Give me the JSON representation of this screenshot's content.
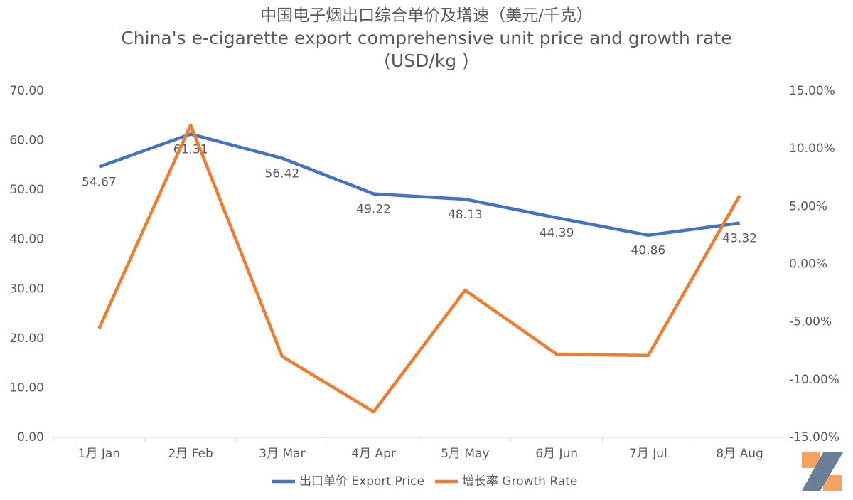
{
  "chart_data": {
    "type": "line",
    "title": "中国电子烟出口综合单价及增速（美元/千克）",
    "subtitle": "China's e-cigarette export comprehensive unit price and growth rate (USD/kg )",
    "categories": [
      "1月 Jan",
      "2月 Feb",
      "3月 Mar",
      "4月 Apr",
      "5月 May",
      "6月 Jun",
      "7月 Jul",
      "8月 Aug"
    ],
    "series": [
      {
        "name": "出口单价 Export Price",
        "color": "#4472c4",
        "values": [
          54.67,
          61.31,
          56.42,
          49.22,
          48.13,
          44.39,
          40.86,
          43.32
        ],
        "data_labels": true
      },
      {
        "name": "增长率 Growth Rate",
        "color": "#ed7d31",
        "axis": "y2",
        "values": [
          -5.57,
          12.05,
          -7.98,
          -12.78,
          -2.25,
          -7.79,
          -7.91,
          5.95
        ]
      }
    ],
    "ylim": [
      0,
      70
    ],
    "yticks": [
      {
        "value": 0,
        "label": "0.00"
      },
      {
        "value": 10,
        "label": "10.00"
      },
      {
        "value": 20,
        "label": "20.00"
      },
      {
        "value": 30,
        "label": "30.00"
      },
      {
        "value": 40,
        "label": "40.00"
      },
      {
        "value": 50,
        "label": "50.00"
      },
      {
        "value": 60,
        "label": "60.00"
      },
      {
        "value": 70,
        "label": "70.00"
      }
    ],
    "y2lim": [
      -15,
      15
    ],
    "y2ticks": [
      {
        "value": -15,
        "label": "-15.00%"
      },
      {
        "value": -10,
        "label": "-10.00%"
      },
      {
        "value": -5,
        "label": "-5.00%"
      },
      {
        "value": 0,
        "label": "0.00%"
      },
      {
        "value": 5,
        "label": "5.00%"
      },
      {
        "value": 10,
        "label": "10.00%"
      },
      {
        "value": 15,
        "label": "15.00%"
      }
    ],
    "legend": "bottom"
  }
}
